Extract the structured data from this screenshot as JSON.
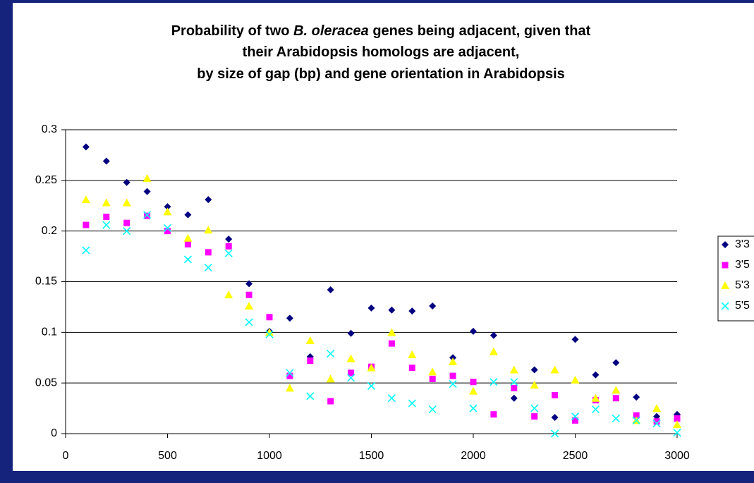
{
  "chart_data": {
    "type": "scatter",
    "title": [
      [
        "Probability of two ",
        "B. oleracea",
        " genes being adjacent, given that"
      ],
      [
        "their Arabidopsis homologs are adjacent,"
      ],
      [
        "by size of gap (bp) and gene orientation in Arabidopsis"
      ]
    ],
    "x": [
      100,
      200,
      300,
      400,
      500,
      600,
      700,
      800,
      900,
      1000,
      1100,
      1200,
      1300,
      1400,
      1500,
      1600,
      1700,
      1800,
      1900,
      2000,
      2100,
      2200,
      2300,
      2400,
      2500,
      2600,
      2700,
      2800,
      2900,
      3000
    ],
    "series": [
      {
        "name": "3'3",
        "color": "#000080",
        "marker": "diamond",
        "values": [
          0.283,
          0.269,
          0.248,
          0.239,
          0.224,
          0.216,
          0.231,
          0.192,
          0.148,
          0.101,
          0.114,
          0.076,
          0.142,
          0.099,
          0.124,
          0.122,
          0.121,
          0.126,
          0.075,
          0.101,
          0.097,
          0.035,
          0.063,
          0.016,
          0.093,
          0.058,
          0.07,
          0.036,
          0.017,
          0.019
        ]
      },
      {
        "name": "3'5",
        "color": "#ff00ff",
        "marker": "square",
        "values": [
          0.206,
          0.214,
          0.208,
          0.215,
          0.2,
          0.187,
          0.179,
          0.185,
          0.137,
          0.115,
          0.057,
          0.072,
          0.032,
          0.06,
          0.066,
          0.089,
          0.065,
          0.054,
          0.057,
          0.051,
          0.019,
          0.045,
          0.017,
          0.038,
          0.013,
          0.033,
          0.035,
          0.018,
          0.012,
          0.015
        ]
      },
      {
        "name": "5'3",
        "color": "#ffff00",
        "marker": "triangle",
        "values": [
          0.231,
          0.228,
          0.228,
          0.252,
          0.219,
          0.193,
          0.201,
          0.137,
          0.126,
          0.1,
          0.045,
          0.092,
          0.054,
          0.074,
          0.065,
          0.1,
          0.078,
          0.061,
          0.071,
          0.042,
          0.081,
          0.063,
          0.048,
          0.063,
          0.053,
          0.035,
          0.043,
          0.013,
          0.025,
          0.009
        ]
      },
      {
        "name": "5'5",
        "color": "#00ffff",
        "marker": "x",
        "values": [
          0.181,
          0.206,
          0.2,
          0.216,
          0.203,
          0.172,
          0.164,
          0.178,
          0.11,
          0.098,
          0.06,
          0.037,
          0.079,
          0.055,
          0.047,
          0.035,
          0.03,
          0.024,
          0.049,
          0.025,
          0.051,
          0.051,
          0.025,
          0,
          0.017,
          0.024,
          0.015,
          0.013,
          0.01,
          0.001
        ]
      }
    ],
    "xlim": [
      0,
      3000
    ],
    "xticks": [
      0,
      500,
      1000,
      1500,
      2000,
      2500,
      3000
    ],
    "ylim": [
      0,
      0.3
    ],
    "yticks": [
      0,
      0.05,
      0.1,
      0.15,
      0.2,
      0.25,
      0.3
    ],
    "grid": true,
    "legend": "right"
  }
}
